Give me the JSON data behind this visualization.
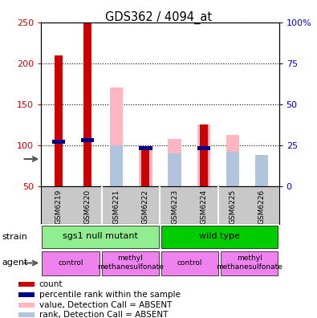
{
  "title": "GDS362 / 4094_at",
  "samples": [
    "GSM6219",
    "GSM6220",
    "GSM6221",
    "GSM6222",
    "GSM6223",
    "GSM6224",
    "GSM6225",
    "GSM6226"
  ],
  "red_bars": [
    210,
    250,
    0,
    97,
    0,
    125,
    0,
    0
  ],
  "blue_rank_pct": [
    27,
    28,
    0,
    23,
    0,
    23,
    0,
    0
  ],
  "pink_bars": [
    0,
    0,
    170,
    97,
    108,
    125,
    112,
    63
  ],
  "lightblue_rank_pct": [
    0,
    0,
    25,
    0,
    20,
    0,
    21,
    19
  ],
  "ylim_left": [
    50,
    250
  ],
  "ylim_right": [
    0,
    100
  ],
  "yticks_left": [
    50,
    100,
    150,
    200,
    250
  ],
  "yticks_right": [
    0,
    25,
    50,
    75,
    100
  ],
  "ytick_labels_left": [
    "50",
    "100",
    "150",
    "200",
    "250"
  ],
  "ytick_labels_right": [
    "0",
    "25",
    "50",
    "75",
    "100%"
  ],
  "strain_groups": [
    {
      "label": "sgs1 null mutant",
      "start": 0,
      "end": 4,
      "color": "#90EE90"
    },
    {
      "label": "wild type",
      "start": 4,
      "end": 8,
      "color": "#00CC00"
    }
  ],
  "agent_groups": [
    {
      "label": "control",
      "start": 0,
      "end": 2,
      "color": "#EE82EE"
    },
    {
      "label": "methyl\nmethanesulfonate",
      "start": 2,
      "end": 4,
      "color": "#EE82EE"
    },
    {
      "label": "control",
      "start": 4,
      "end": 6,
      "color": "#EE82EE"
    },
    {
      "label": "methyl\nmethanesulfonate",
      "start": 6,
      "end": 8,
      "color": "#EE82EE"
    }
  ],
  "legend_items": [
    {
      "color": "#CC0000",
      "label": "count"
    },
    {
      "color": "#00008B",
      "label": "percentile rank within the sample"
    },
    {
      "color": "#FFB6C1",
      "label": "value, Detection Call = ABSENT"
    },
    {
      "color": "#B0C4DE",
      "label": "rank, Detection Call = ABSENT"
    }
  ],
  "colors": {
    "red": "#CC0000",
    "blue": "#00008B",
    "pink": "#FFB6C1",
    "lightblue": "#B0C4DE",
    "left_axis": "#CC0000",
    "right_axis": "#0000CC"
  }
}
